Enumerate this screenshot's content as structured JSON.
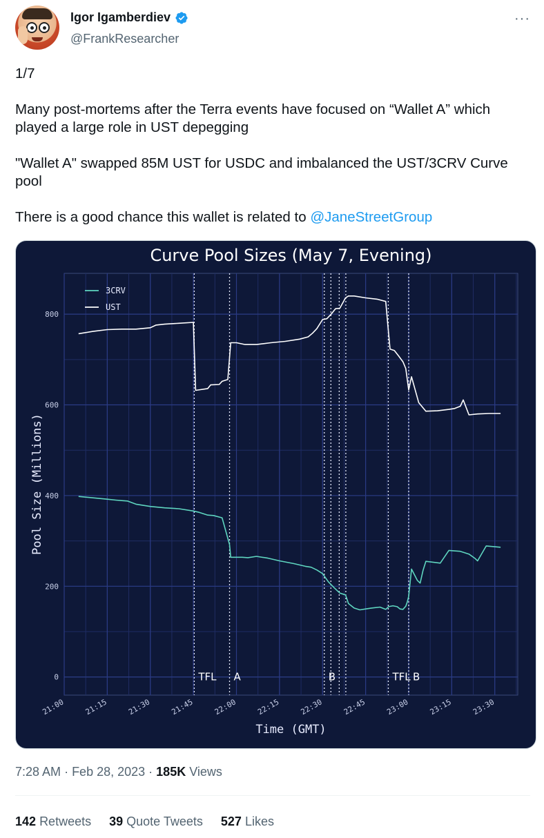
{
  "author": {
    "display_name": "Igor Igamberdiev",
    "handle": "@FrankResearcher",
    "verified": true,
    "avatar_icon": "avatar-frank-cartoon"
  },
  "tweet": {
    "paragraphs": [
      "1/7",
      "Many post-mortems after the Terra events have focused on “Wallet A” which played a large role in UST depegging",
      "\"Wallet A\" swapped 85M UST for USDC and imbalanced the UST/3CRV Curve pool"
    ],
    "last_paragraph_prefix": "There is a good chance this wallet is related to ",
    "mention": "@JaneStreetGroup"
  },
  "meta": {
    "time": "7:28 AM",
    "date": "Feb 28, 2023",
    "views_count": "185K",
    "views_label": "Views"
  },
  "stats": {
    "retweets_count": "142",
    "retweets_label": "Retweets",
    "quote_count": "39",
    "quote_label": "Quote Tweets",
    "likes_count": "527",
    "likes_label": "Likes"
  },
  "colors": {
    "link": "#1d9bf0",
    "chart_bg": "#0e1838",
    "series_3crv": "#5fd6c0",
    "series_ust": "#ffffff"
  },
  "chart_data": {
    "type": "line",
    "title": "Curve Pool Sizes (May 7, Evening)",
    "xlabel": "Time (GMT)",
    "ylabel": "Pool Size (Millions)",
    "x_ticks": [
      "21:00",
      "21:15",
      "21:30",
      "21:45",
      "22:00",
      "22:15",
      "22:30",
      "22:45",
      "23:00",
      "23:15",
      "23:30"
    ],
    "y_ticks": [
      0,
      200,
      400,
      600,
      800
    ],
    "ylim": [
      -40,
      890
    ],
    "xlim_minutes": [
      0,
      158
    ],
    "legend": [
      "3CRV",
      "UST"
    ],
    "legend_position": "top-left",
    "grid": true,
    "events": [
      {
        "label": "TFL",
        "minute": 45.3
      },
      {
        "label": "A",
        "minute": 57.6
      },
      {
        "label": "B",
        "minute": 90.6
      },
      {
        "label": "",
        "minute": 92.9
      },
      {
        "label": "",
        "minute": 95.8
      },
      {
        "label": "",
        "minute": 98.1
      },
      {
        "label": "TFL",
        "minute": 112.9
      },
      {
        "label": "B",
        "minute": 120.0
      }
    ],
    "series": [
      {
        "name": "UST",
        "x": [
          5,
          10,
          15,
          20,
          25,
          30,
          32,
          35,
          40,
          45,
          45.8,
          50,
          51,
          54,
          55,
          57,
          58,
          60,
          63,
          67,
          72,
          77,
          82,
          85,
          86.5,
          88,
          90,
          91.5,
          93,
          94.5,
          96,
          98,
          99,
          101,
          105,
          109,
          112,
          113.5,
          115,
          116.5,
          118,
          119,
          120,
          121,
          123.5,
          126,
          130,
          134,
          136,
          138,
          139,
          141,
          144,
          148,
          152
        ],
        "y": [
          757,
          762,
          766,
          767,
          767,
          770,
          776,
          778,
          780,
          782,
          632,
          636,
          644,
          645,
          652,
          656,
          737,
          737,
          733,
          733,
          737,
          740,
          745,
          750,
          758,
          768,
          788,
          790,
          800,
          812,
          813,
          836,
          840,
          840,
          836,
          833,
          828,
          723,
          720,
          708,
          695,
          680,
          633,
          662,
          605,
          586,
          587,
          590,
          592,
          597,
          611,
          578,
          580,
          581,
          581
        ]
      },
      {
        "name": "3CRV",
        "x": [
          5,
          10,
          15,
          18,
          20,
          22,
          25,
          30,
          35,
          40,
          45,
          47,
          50,
          52,
          55,
          57.6,
          58,
          62,
          64,
          67,
          71,
          75,
          80,
          84,
          86,
          88,
          90,
          92,
          94,
          96,
          98,
          99,
          101,
          103,
          105,
          107,
          110,
          112,
          113,
          114.5,
          116,
          117,
          118,
          119,
          119.5,
          120,
          121,
          123,
          124,
          125,
          126,
          131,
          134,
          138,
          141,
          143,
          144,
          147,
          152
        ],
        "y": [
          398,
          395,
          392,
          390,
          389,
          388,
          381,
          376,
          373,
          371,
          366,
          363,
          357,
          356,
          351,
          292,
          264,
          264,
          263,
          266,
          262,
          256,
          250,
          244,
          242,
          236,
          228,
          210,
          197,
          185,
          181,
          162,
          152,
          148,
          150,
          152,
          154,
          149,
          155,
          157,
          155,
          150,
          149,
          156,
          165,
          178,
          238,
          213,
          207,
          235,
          255,
          251,
          279,
          277,
          271,
          262,
          256,
          289,
          286
        ]
      }
    ]
  }
}
